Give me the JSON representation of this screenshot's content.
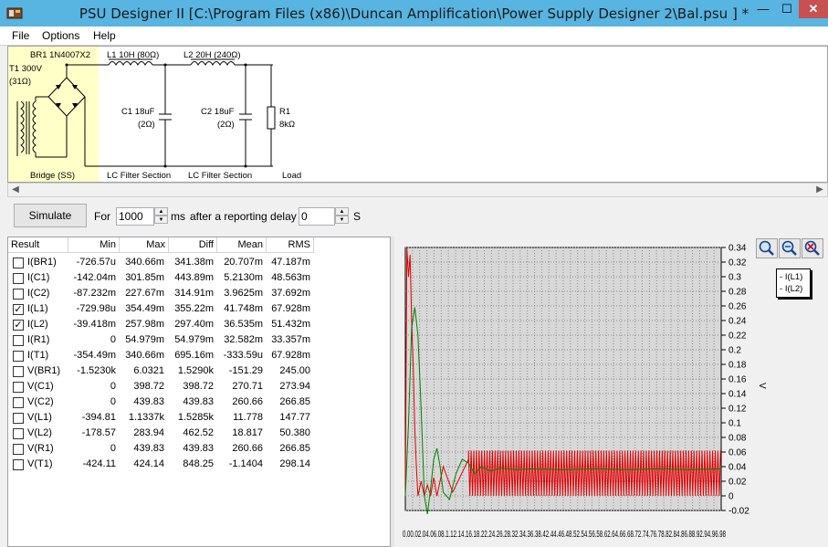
{
  "window": {
    "title": "PSU Designer II  [C:\\Program Files (x86)\\Duncan Amplification\\Power Supply Designer 2\\Bal.psu ] *",
    "minimize": "—",
    "maximize": "☐",
    "close": "✕"
  },
  "menu": [
    "File",
    "Options",
    "Help"
  ],
  "schematic": {
    "bridge": "BR1 1N4007X2",
    "transformer": "T1 300V",
    "transformer_r": "(31Ω)",
    "l1": "L1 10H (80Ω)",
    "l2": "L2 20H (240Ω)",
    "c1": "C1 18uF",
    "c1_r": "(2Ω)",
    "c2": "C2 18uF",
    "c2_r": "(2Ω)",
    "r1": "R1",
    "r1_v": "8kΩ",
    "sections": [
      "Bridge (SS)",
      "LC Filter Section",
      "LC Filter Section",
      "Load"
    ]
  },
  "toolbar": {
    "simulate": "Simulate",
    "for_label": "For",
    "duration": "1000",
    "ms_label": "ms",
    "delay_label": "after a reporting delay of",
    "delay": "0",
    "s_label": "S"
  },
  "results": {
    "columns": [
      "Result",
      "Min",
      "Max",
      "Diff",
      "Mean",
      "RMS"
    ],
    "rows": [
      {
        "name": "I(BR1)",
        "checked": false,
        "min": "-726.57u",
        "max": "340.66m",
        "diff": "341.38m",
        "mean": "20.707m",
        "rms": "47.187m"
      },
      {
        "name": "I(C1)",
        "checked": false,
        "min": "-142.04m",
        "max": "301.85m",
        "diff": "443.89m",
        "mean": "5.2130m",
        "rms": "48.563m"
      },
      {
        "name": "I(C2)",
        "checked": false,
        "min": "-87.232m",
        "max": "227.67m",
        "diff": "314.91m",
        "mean": "3.9625m",
        "rms": "37.692m"
      },
      {
        "name": "I(L1)",
        "checked": true,
        "min": "-729.98u",
        "max": "354.49m",
        "diff": "355.22m",
        "mean": "41.748m",
        "rms": "67.928m"
      },
      {
        "name": "I(L2)",
        "checked": true,
        "min": "-39.418m",
        "max": "257.98m",
        "diff": "297.40m",
        "mean": "36.535m",
        "rms": "51.432m"
      },
      {
        "name": "I(R1)",
        "checked": false,
        "min": "0",
        "max": "54.979m",
        "diff": "54.979m",
        "mean": "32.582m",
        "rms": "33.357m"
      },
      {
        "name": "I(T1)",
        "checked": false,
        "min": "-354.49m",
        "max": "340.66m",
        "diff": "695.16m",
        "mean": "-333.59u",
        "rms": "67.928m"
      },
      {
        "name": "V(BR1)",
        "checked": false,
        "min": "-1.5230k",
        "max": "6.0321",
        "diff": "1.5290k",
        "mean": "-151.29",
        "rms": "245.00"
      },
      {
        "name": "V(C1)",
        "checked": false,
        "min": "0",
        "max": "398.72",
        "diff": "398.72",
        "mean": "270.71",
        "rms": "273.94"
      },
      {
        "name": "V(C2)",
        "checked": false,
        "min": "0",
        "max": "439.83",
        "diff": "439.83",
        "mean": "260.66",
        "rms": "266.85"
      },
      {
        "name": "V(L1)",
        "checked": false,
        "min": "-394.81",
        "max": "1.1337k",
        "diff": "1.5285k",
        "mean": "11.778",
        "rms": "147.77"
      },
      {
        "name": "V(L2)",
        "checked": false,
        "min": "-178.57",
        "max": "283.94",
        "diff": "462.52",
        "mean": "18.817",
        "rms": "50.380"
      },
      {
        "name": "V(R1)",
        "checked": false,
        "min": "0",
        "max": "439.83",
        "diff": "439.83",
        "mean": "260.66",
        "rms": "266.85"
      },
      {
        "name": "V(T1)",
        "checked": false,
        "min": "-424.11",
        "max": "424.14",
        "diff": "848.25",
        "mean": "-1.1404",
        "rms": "298.14"
      }
    ]
  },
  "zoom_icons": [
    "zoom-in-icon",
    "zoom-out-icon",
    "zoom-reset-icon"
  ],
  "chart_data": {
    "type": "line",
    "ylabel": "V",
    "ylim": [
      -0.02,
      0.34
    ],
    "yticks": [
      "0.34",
      "0.32",
      "0.3",
      "0.28",
      "0.26",
      "0.24",
      "0.22",
      "0.2",
      "0.18",
      "0.16",
      "0.14",
      "0.12",
      "0.1",
      "0.08",
      "0.06",
      "0.04",
      "0.02",
      "0",
      "-0.02"
    ],
    "xlim": [
      0,
      1
    ],
    "xtick_text": "0.00.02.04.06.08.1.12.14.16.18.22.24.26.28.32.34.36.38.42.44.46.48.52.54.56.58.62.64.66.68.72.74.76.78.82.84.86.88.92.94.96.98",
    "grid": true,
    "legend_position": "top-right",
    "series": [
      {
        "name": "I(L1)",
        "color": "#e00000",
        "x": [
          0,
          0.005,
          0.01,
          0.015,
          0.02,
          0.025,
          0.03,
          0.035,
          0.04,
          0.05,
          0.06,
          0.07,
          0.08,
          0.09,
          0.1,
          0.12,
          0.15,
          0.2,
          0.3,
          0.5,
          1.0
        ],
        "y": [
          0.0,
          0.34,
          0.3,
          0.33,
          0.24,
          0.18,
          0.09,
          0.04,
          0.0,
          0.02,
          0.0,
          0.015,
          0.0,
          0.025,
          0.0,
          0.04,
          0.005,
          0.05,
          0.0,
          0.06,
          0.0
        ],
        "ripple": {
          "from": 0.2,
          "low": 0.0,
          "high": 0.062
        }
      },
      {
        "name": "I(L2)",
        "color": "#008000",
        "x": [
          0,
          0.01,
          0.02,
          0.03,
          0.04,
          0.05,
          0.06,
          0.07,
          0.08,
          0.09,
          0.1,
          0.11,
          0.12,
          0.14,
          0.16,
          0.18,
          0.2,
          0.22,
          0.24,
          0.27,
          0.3,
          0.35,
          0.4,
          0.5,
          0.6,
          0.7,
          0.8,
          0.9,
          1.0
        ],
        "y": [
          0.0,
          0.1,
          0.23,
          0.258,
          0.22,
          0.12,
          0.0,
          -0.025,
          0.01,
          0.05,
          0.065,
          0.04,
          0.005,
          -0.005,
          0.03,
          0.05,
          0.045,
          0.03,
          0.04,
          0.034,
          0.038,
          0.036,
          0.037,
          0.036,
          0.037,
          0.036,
          0.037,
          0.036,
          0.037
        ]
      }
    ]
  }
}
